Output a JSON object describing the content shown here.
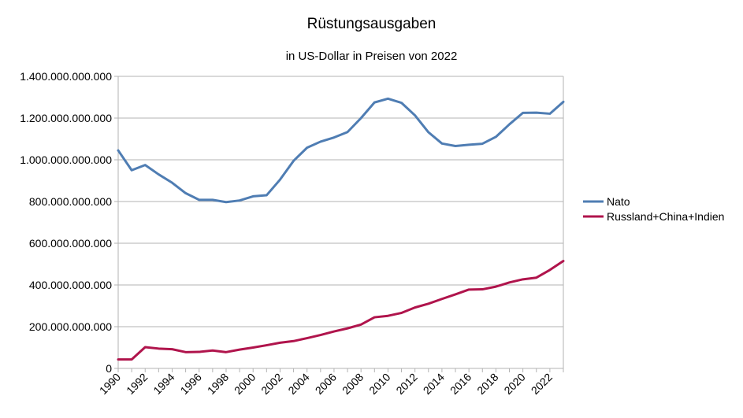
{
  "chart_data": {
    "type": "line",
    "title": "Rüstungsausgaben",
    "subtitle": "in US-Dollar in Preisen von 2022",
    "xlabel": "",
    "ylabel": "",
    "x": [
      1990,
      1991,
      1992,
      1993,
      1994,
      1995,
      1996,
      1997,
      1998,
      1999,
      2000,
      2001,
      2002,
      2003,
      2004,
      2005,
      2006,
      2007,
      2008,
      2009,
      2010,
      2011,
      2012,
      2013,
      2014,
      2015,
      2016,
      2017,
      2018,
      2019,
      2020,
      2021,
      2022,
      2023
    ],
    "x_tick_labels": [
      "1990",
      "1992",
      "1994",
      "1996",
      "1998",
      "2000",
      "2002",
      "2004",
      "2006",
      "2008",
      "2010",
      "2012",
      "2014",
      "2016",
      "2018",
      "2020",
      "2022"
    ],
    "ylim": [
      0,
      1400000000000
    ],
    "y_tick_labels": [
      "0",
      "200.000.000.000",
      "400.000.000.000",
      "600.000.000.000",
      "800.000.000.000",
      "1.000.000.000.000",
      "1.200.000.000.000",
      "1.400.000.000.000"
    ],
    "grid": true,
    "legend_position": "right",
    "series": [
      {
        "name": "Nato",
        "color": "#4f7db3",
        "values": [
          1045000000000,
          950000000000,
          975000000000,
          930000000000,
          890000000000,
          840000000000,
          808000000000,
          808000000000,
          797000000000,
          805000000000,
          825000000000,
          830000000000,
          905000000000,
          995000000000,
          1058000000000,
          1087000000000,
          1107000000000,
          1133000000000,
          1200000000000,
          1275000000000,
          1293000000000,
          1273000000000,
          1213000000000,
          1132000000000,
          1078000000000,
          1066000000000,
          1072000000000,
          1077000000000,
          1110000000000,
          1170000000000,
          1225000000000,
          1226000000000,
          1221000000000,
          1278000000000
        ]
      },
      {
        "name": "Russland+China+Indien",
        "color": "#b0144c",
        "values": [
          43000000000,
          43000000000,
          102000000000,
          95000000000,
          92000000000,
          78000000000,
          79000000000,
          86000000000,
          78000000000,
          90000000000,
          100000000000,
          111000000000,
          123000000000,
          131000000000,
          145000000000,
          160000000000,
          177000000000,
          192000000000,
          210000000000,
          245000000000,
          252000000000,
          266000000000,
          292000000000,
          310000000000,
          333000000000,
          355000000000,
          378000000000,
          379000000000,
          392000000000,
          412000000000,
          427000000000,
          435000000000,
          472000000000,
          515000000000
        ]
      }
    ]
  }
}
